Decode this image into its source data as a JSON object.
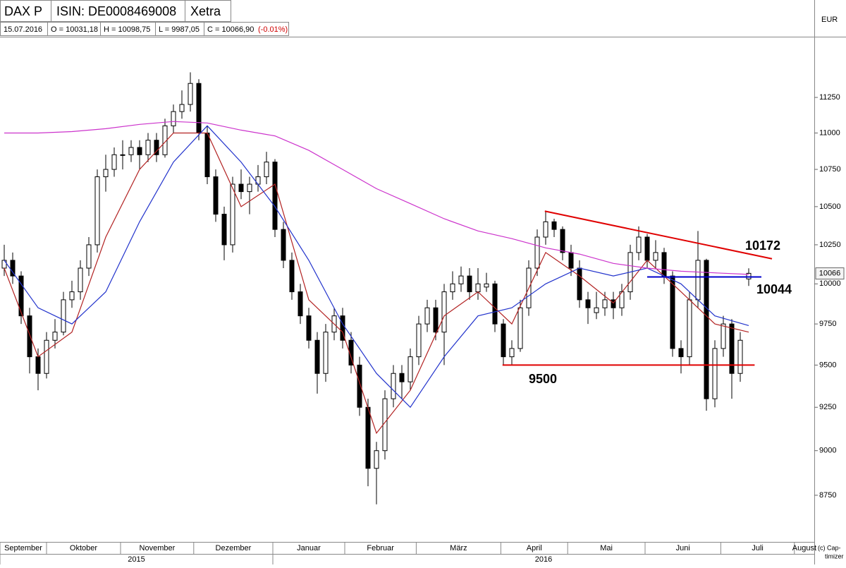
{
  "header": {
    "instrument": "DAX P",
    "isin": "ISIN: DE0008469008",
    "exchange": "Xetra",
    "date": "15.07.2016",
    "open": "O = 10031,18",
    "high": "H = 10098,75",
    "low": "L = 9987,05",
    "close": "C = 10066,90",
    "change": "(-0.01%)",
    "currency": "EUR",
    "footer_note": [
      "(c) Cap-",
      "timizer"
    ]
  },
  "chart_data": {
    "type": "candlestick",
    "log_scale": true,
    "grid": false,
    "up_color": "#ffffff",
    "down_color": "#000000",
    "ylim": [
      8496,
      11690
    ],
    "yticks": [
      8750,
      9000,
      9250,
      9500,
      9750,
      10000,
      10250,
      10500,
      10750,
      11000,
      11250
    ],
    "xlim": [
      -0.5,
      95.75
    ],
    "xticks": [
      {
        "value": -0.5,
        "label": "September"
      },
      {
        "value": 5,
        "label": "Oktober"
      },
      {
        "value": 13.75,
        "label": "November"
      },
      {
        "value": 22.4,
        "label": "Dezember"
      },
      {
        "value": 31.75,
        "label": "Januar"
      },
      {
        "value": 40.25,
        "label": "Februar"
      },
      {
        "value": 48.7,
        "label": "März"
      },
      {
        "value": 58.7,
        "label": "April"
      },
      {
        "value": 66.6,
        "label": "Mai"
      },
      {
        "value": 75.75,
        "label": "Juni"
      },
      {
        "value": 84.7,
        "label": "Juli"
      },
      {
        "value": 93.4,
        "label": "August"
      }
    ],
    "years": [
      {
        "value": -0.5,
        "label": "2015"
      },
      {
        "value": 31.75,
        "label": "2016"
      }
    ],
    "last_price": {
      "value": 10066,
      "label": "10066"
    },
    "candles": [
      [
        10100,
        10250,
        10050,
        10150
      ],
      [
        10150,
        10200,
        10000,
        10050
      ],
      [
        10050,
        10080,
        9750,
        9800
      ],
      [
        9800,
        9850,
        9450,
        9550
      ],
      [
        9550,
        9600,
        9350,
        9450
      ],
      [
        9450,
        9700,
        9420,
        9650
      ],
      [
        9650,
        9780,
        9600,
        9700
      ],
      [
        9700,
        9950,
        9680,
        9900
      ],
      [
        9900,
        10020,
        9850,
        9950
      ],
      [
        9950,
        10150,
        9900,
        10100
      ],
      [
        10100,
        10300,
        10050,
        10250
      ],
      [
        10250,
        10750,
        10200,
        10700
      ],
      [
        10700,
        10850,
        10600,
        10750
      ],
      [
        10750,
        10900,
        10700,
        10850
      ],
      [
        10850,
        10950,
        10750,
        10850
      ],
      [
        10850,
        10950,
        10800,
        10900
      ],
      [
        10900,
        10950,
        10750,
        10850
      ],
      [
        10850,
        11000,
        10800,
        10950
      ],
      [
        10950,
        11000,
        10800,
        10850
      ],
      [
        10850,
        11100,
        10830,
        11050
      ],
      [
        11050,
        11200,
        11000,
        11150
      ],
      [
        11150,
        11300,
        11100,
        11200
      ],
      [
        11200,
        11430,
        11150,
        11350
      ],
      [
        11350,
        11380,
        10950,
        11000
      ],
      [
        11000,
        11050,
        10650,
        10700
      ],
      [
        10700,
        10750,
        10400,
        10450
      ],
      [
        10450,
        10500,
        10150,
        10250
      ],
      [
        10250,
        10700,
        10200,
        10650
      ],
      [
        10650,
        10750,
        10550,
        10600
      ],
      [
        10600,
        10700,
        10450,
        10650
      ],
      [
        10650,
        10780,
        10600,
        10700
      ],
      [
        10700,
        10870,
        10650,
        10800
      ],
      [
        10800,
        10820,
        10300,
        10350
      ],
      [
        10350,
        10400,
        10100,
        10150
      ],
      [
        10150,
        10200,
        9900,
        9950
      ],
      [
        9950,
        10000,
        9750,
        9800
      ],
      [
        9800,
        9850,
        9600,
        9650
      ],
      [
        9650,
        9700,
        9330,
        9450
      ],
      [
        9450,
        9750,
        9400,
        9700
      ],
      [
        9700,
        9850,
        9650,
        9800
      ],
      [
        9800,
        9850,
        9600,
        9650
      ],
      [
        9650,
        9700,
        9450,
        9500
      ],
      [
        9500,
        9550,
        9200,
        9250
      ],
      [
        9250,
        9300,
        8800,
        8900
      ],
      [
        8900,
        9050,
        8700,
        9000
      ],
      [
        9000,
        9350,
        8950,
        9300
      ],
      [
        9300,
        9500,
        9250,
        9450
      ],
      [
        9450,
        9500,
        9300,
        9400
      ],
      [
        9400,
        9600,
        9350,
        9550
      ],
      [
        9550,
        9800,
        9500,
        9750
      ],
      [
        9750,
        9900,
        9700,
        9850
      ],
      [
        9850,
        9900,
        9650,
        9700
      ],
      [
        9700,
        10000,
        9500,
        9950
      ],
      [
        9950,
        10080,
        9900,
        10000
      ],
      [
        10000,
        10110,
        9950,
        10050
      ],
      [
        10050,
        10100,
        9900,
        9950
      ],
      [
        9950,
        10100,
        9900,
        10000
      ],
      [
        9980,
        10070,
        9950,
        10000
      ],
      [
        10000,
        10020,
        9700,
        9750
      ],
      [
        9750,
        9780,
        9500,
        9550
      ],
      [
        9550,
        9650,
        9500,
        9600
      ],
      [
        9600,
        9900,
        9580,
        9850
      ],
      [
        9850,
        10150,
        9800,
        10100
      ],
      [
        10100,
        10350,
        10050,
        10300
      ],
      [
        10300,
        10470,
        10250,
        10400
      ],
      [
        10400,
        10420,
        10300,
        10350
      ],
      [
        10350,
        10370,
        10150,
        10200
      ],
      [
        10200,
        10250,
        10050,
        10100
      ],
      [
        10100,
        10150,
        9850,
        9900
      ],
      [
        9900,
        9950,
        9750,
        9850
      ],
      [
        9820,
        9950,
        9780,
        9850
      ],
      [
        9850,
        9950,
        9800,
        9900
      ],
      [
        9900,
        9950,
        9780,
        9850
      ],
      [
        9850,
        10000,
        9800,
        9950
      ],
      [
        9950,
        10250,
        9900,
        10200
      ],
      [
        10200,
        10370,
        10150,
        10300
      ],
      [
        10300,
        10320,
        10100,
        10150
      ],
      [
        10150,
        10280,
        10100,
        10200
      ],
      [
        10200,
        10230,
        10000,
        10050
      ],
      [
        10050,
        10080,
        9550,
        9600
      ],
      [
        9600,
        9650,
        9450,
        9550
      ],
      [
        9550,
        9950,
        9500,
        9900
      ],
      [
        9900,
        10340,
        9850,
        10150
      ],
      [
        10150,
        10160,
        9230,
        9300
      ],
      [
        9300,
        9650,
        9250,
        9600
      ],
      [
        9600,
        9800,
        9550,
        9750
      ],
      [
        9750,
        9780,
        9300,
        9450
      ],
      [
        9450,
        9700,
        9400,
        9650
      ],
      [
        10031.18,
        10098.75,
        9987.05,
        10066.9
      ]
    ],
    "series": [
      {
        "color": "#b22222",
        "x": [
          0,
          4,
          8,
          12,
          16,
          20,
          24,
          28,
          32,
          36,
          40,
          44,
          48,
          52,
          56,
          60,
          64,
          68,
          72,
          76,
          80,
          84,
          88
        ],
        "values": [
          10100,
          9550,
          9700,
          10300,
          10750,
          11000,
          11000,
          10500,
          10650,
          9900,
          9700,
          9100,
          9350,
          9800,
          9950,
          9750,
          10200,
          10050,
          9880,
          10150,
          9950,
          9750,
          9700
        ]
      },
      {
        "color": "#2233cc",
        "x": [
          0,
          4,
          8,
          12,
          16,
          20,
          24,
          28,
          32,
          36,
          40,
          44,
          48,
          52,
          56,
          60,
          64,
          68,
          72,
          76,
          80,
          84,
          88
        ],
        "values": [
          10150,
          9850,
          9750,
          9950,
          10400,
          10800,
          11050,
          10800,
          10500,
          10150,
          9750,
          9450,
          9250,
          9550,
          9800,
          9850,
          10000,
          10100,
          10050,
          10100,
          10000,
          9800,
          9740
        ]
      },
      {
        "color": "#cc33cc",
        "x": [
          0,
          4,
          8,
          12,
          16,
          20,
          24,
          28,
          32,
          36,
          40,
          44,
          48,
          52,
          56,
          60,
          64,
          68,
          72,
          76,
          80,
          84,
          88
        ],
        "values": [
          11000,
          11000,
          11010,
          11030,
          11060,
          11080,
          11070,
          11020,
          10980,
          10880,
          10750,
          10620,
          10520,
          10420,
          10340,
          10290,
          10230,
          10190,
          10130,
          10100,
          10080,
          10070,
          10060
        ]
      }
    ],
    "annotations": [
      {
        "label": "10172",
        "color": "#e00000",
        "x": [
          63.9,
          90.75
        ],
        "y": [
          10470,
          10160
        ]
      },
      {
        "label": "9500",
        "color": "#e00000",
        "value": 9500,
        "x": [
          58.9,
          88.7
        ]
      },
      {
        "label": "10044",
        "color": "#0000cc",
        "value": 10044,
        "x": [
          76,
          89.5
        ]
      }
    ]
  }
}
